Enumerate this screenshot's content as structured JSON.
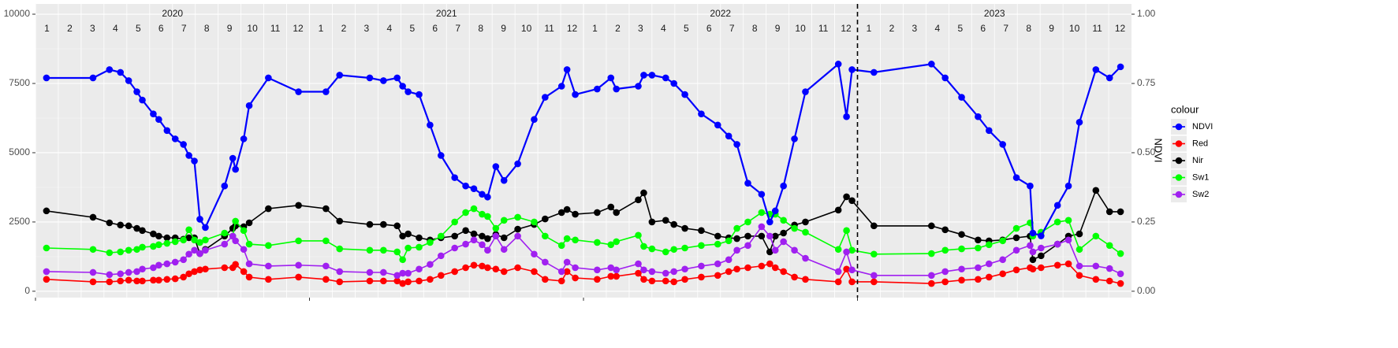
{
  "chart_data": {
    "type": "line",
    "legend_title": "colour",
    "legend_position": "right",
    "y2label": "NDVI",
    "grid": true,
    "xlim": [
      2020,
      2024
    ],
    "xticks": [
      2020,
      2021,
      2022,
      2023
    ],
    "ylim": [
      -230,
      10370
    ],
    "yticks": [
      0,
      2500,
      5000,
      7500,
      10000
    ],
    "y2lim": [
      -0.023,
      1.037
    ],
    "y2ticks": [
      {
        "value": 0,
        "label": "0.00"
      },
      {
        "value": 0.25,
        "label": "0.25"
      },
      {
        "value": 0.5,
        "label": "0.50"
      },
      {
        "value": 0.75,
        "label": "0.75"
      },
      {
        "value": 1,
        "label": "1.00"
      }
    ],
    "year_labels": [
      2020,
      2021,
      2022,
      2023
    ],
    "month_labels": [
      1,
      2,
      3,
      4,
      5,
      6,
      7,
      8,
      9,
      10,
      11,
      12
    ],
    "vline": 2023,
    "x": [
      2020.04,
      2020.21,
      2020.27,
      2020.31,
      2020.34,
      2020.37,
      2020.39,
      2020.43,
      2020.45,
      2020.48,
      2020.51,
      2020.54,
      2020.56,
      2020.58,
      2020.6,
      2020.62,
      2020.69,
      2020.72,
      2020.73,
      2020.76,
      2020.78,
      2020.85,
      2020.96,
      2021.06,
      2021.11,
      2021.22,
      2021.27,
      2021.32,
      2021.34,
      2021.36,
      2021.4,
      2021.44,
      2021.48,
      2021.53,
      2021.57,
      2021.6,
      2021.63,
      2021.65,
      2021.68,
      2021.71,
      2021.76,
      2021.82,
      2021.86,
      2021.92,
      2021.94,
      2021.97,
      2022.05,
      2022.1,
      2022.12,
      2022.2,
      2022.22,
      2022.25,
      2022.3,
      2022.33,
      2022.37,
      2022.43,
      2022.49,
      2022.53,
      2022.56,
      2022.6,
      2022.65,
      2022.68,
      2022.7,
      2022.73,
      2022.77,
      2022.81,
      2022.93,
      2022.96,
      2022.98,
      2023.06,
      2023.27,
      2023.32,
      2023.38,
      2023.44,
      2023.48,
      2023.53,
      2023.58,
      2023.63,
      2023.64,
      2023.67,
      2023.73,
      2023.77,
      2023.81,
      2023.87,
      2023.92,
      2023.96
    ],
    "series": [
      {
        "name": "NDVI",
        "color": "#0000ff",
        "axis": "y2",
        "values": [
          0.77,
          0.77,
          0.8,
          0.79,
          0.76,
          0.72,
          0.69,
          0.64,
          0.62,
          0.58,
          0.55,
          0.53,
          0.49,
          0.47,
          0.26,
          0.23,
          0.38,
          0.48,
          0.44,
          0.55,
          0.67,
          0.77,
          0.72,
          0.72,
          0.78,
          0.77,
          0.76,
          0.77,
          0.74,
          0.72,
          0.71,
          0.6,
          0.49,
          0.41,
          0.38,
          0.37,
          0.35,
          0.34,
          0.45,
          0.4,
          0.46,
          0.62,
          0.7,
          0.74,
          0.8,
          0.71,
          0.73,
          0.77,
          0.73,
          0.74,
          0.78,
          0.78,
          0.77,
          0.75,
          0.71,
          0.64,
          0.6,
          0.56,
          0.53,
          0.39,
          0.35,
          0.25,
          0.29,
          0.38,
          0.55,
          0.72,
          0.82,
          0.63,
          0.8,
          0.79,
          0.82,
          0.77,
          0.7,
          0.63,
          0.58,
          0.53,
          0.41,
          0.38,
          0.21,
          0.2,
          0.31,
          0.38,
          0.61,
          0.8,
          0.77,
          0.81
        ]
      },
      {
        "name": "Red",
        "color": "#ff0000",
        "values": [
          430,
          340,
          340,
          370,
          400,
          370,
          370,
          400,
          400,
          430,
          450,
          510,
          630,
          710,
          770,
          800,
          850,
          850,
          970,
          710,
          510,
          430,
          510,
          430,
          340,
          370,
          370,
          370,
          280,
          340,
          370,
          430,
          570,
          710,
          850,
          940,
          910,
          850,
          800,
          710,
          850,
          710,
          430,
          370,
          710,
          480,
          430,
          540,
          540,
          650,
          430,
          370,
          370,
          340,
          430,
          510,
          570,
          710,
          800,
          850,
          910,
          990,
          850,
          710,
          510,
          430,
          340,
          800,
          340,
          340,
          280,
          340,
          400,
          430,
          510,
          630,
          770,
          850,
          800,
          850,
          940,
          990,
          570,
          430,
          370,
          280
        ]
      },
      {
        "name": "Nir",
        "color": "#000000",
        "values": [
          2900,
          2670,
          2470,
          2390,
          2360,
          2270,
          2190,
          2070,
          1990,
          1930,
          1930,
          1880,
          1930,
          1930,
          1360,
          1510,
          1990,
          2270,
          2360,
          2330,
          2470,
          2980,
          3100,
          2980,
          2530,
          2410,
          2410,
          2360,
          1990,
          2070,
          1930,
          1850,
          1930,
          1990,
          2190,
          2070,
          1990,
          1900,
          2050,
          1930,
          2240,
          2410,
          2610,
          2840,
          2950,
          2780,
          2840,
          3040,
          2840,
          3300,
          3550,
          2500,
          2560,
          2410,
          2270,
          2190,
          1990,
          1930,
          1900,
          1990,
          1990,
          1420,
          1990,
          2100,
          2390,
          2500,
          2930,
          3410,
          3270,
          2360,
          2360,
          2220,
          2050,
          1850,
          1820,
          1850,
          1930,
          1990,
          1140,
          1280,
          1700,
          1990,
          2070,
          3640,
          2870,
          2870
        ]
      },
      {
        "name": "Sw1",
        "color": "#00ff00",
        "values": [
          1560,
          1510,
          1390,
          1420,
          1480,
          1510,
          1590,
          1620,
          1680,
          1730,
          1790,
          1850,
          2220,
          1850,
          1760,
          1850,
          2100,
          1990,
          2530,
          2190,
          1700,
          1650,
          1820,
          1820,
          1530,
          1480,
          1480,
          1420,
          1140,
          1560,
          1590,
          1760,
          1990,
          2500,
          2840,
          2980,
          2780,
          2700,
          2270,
          2560,
          2670,
          2500,
          1990,
          1650,
          1900,
          1850,
          1760,
          1680,
          1790,
          2020,
          1620,
          1530,
          1420,
          1510,
          1560,
          1650,
          1700,
          1820,
          2270,
          2500,
          2840,
          2780,
          2780,
          2560,
          2270,
          2130,
          1510,
          2190,
          1480,
          1340,
          1360,
          1480,
          1530,
          1560,
          1680,
          1820,
          2270,
          2470,
          1990,
          2130,
          2500,
          2560,
          1510,
          1990,
          1650,
          1360
        ]
      },
      {
        "name": "Sw2",
        "color": "#a020f0",
        "values": [
          710,
          680,
          600,
          630,
          680,
          710,
          800,
          850,
          940,
          990,
          1050,
          1140,
          1340,
          1480,
          1360,
          1480,
          1700,
          1990,
          1820,
          1510,
          990,
          910,
          940,
          910,
          710,
          680,
          680,
          570,
          650,
          650,
          800,
          970,
          1280,
          1560,
          1700,
          1850,
          1680,
          1480,
          1990,
          1510,
          1990,
          1340,
          1050,
          710,
          1050,
          850,
          770,
          850,
          770,
          990,
          770,
          710,
          650,
          710,
          800,
          910,
          990,
          1140,
          1480,
          1650,
          2330,
          1990,
          1480,
          1790,
          1480,
          1190,
          710,
          1420,
          770,
          570,
          570,
          710,
          800,
          850,
          990,
          1140,
          1480,
          1650,
          1420,
          1560,
          1700,
          1850,
          910,
          910,
          820,
          630
        ]
      }
    ]
  }
}
